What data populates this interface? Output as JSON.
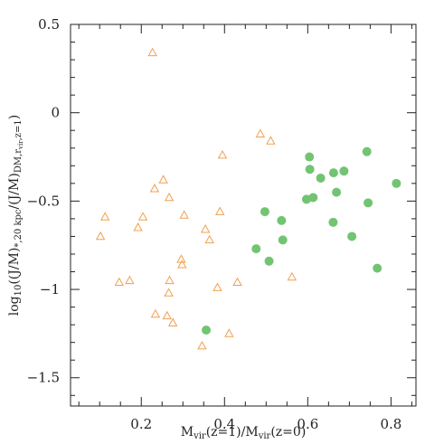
{
  "chart_data": {
    "type": "scatter",
    "xlabel": {
      "base": "M",
      "sub1": "vir",
      "mid": "(z=1)/M",
      "sub2": "vir",
      "end": "(z=0)"
    },
    "ylabel": {
      "p1": "log",
      "s1": "10",
      "p2": "((J/M)",
      "s2": "*,20 kpc",
      "p3": "/(J/M)",
      "s3": "DM,r",
      "s3b": "vir",
      "s3c": ",z=1",
      "p4": ")"
    },
    "xlim": [
      0.03,
      0.86
    ],
    "ylim": [
      -1.66,
      0.5
    ],
    "xticks": [
      {
        "v": 0.2,
        "label": "0.2"
      },
      {
        "v": 0.4,
        "label": "0.4"
      },
      {
        "v": 0.6,
        "label": "0.6"
      },
      {
        "v": 0.8,
        "label": "0.8"
      }
    ],
    "yticks": [
      {
        "v": 0.5,
        "label": "0.5"
      },
      {
        "v": 0,
        "label": "0"
      },
      {
        "v": -0.5,
        "label": "−0.5"
      },
      {
        "v": -1,
        "label": "−1"
      },
      {
        "v": -1.5,
        "label": "−1.5"
      }
    ],
    "x_minor_step": 0.05,
    "y_minor_step": 0.1,
    "series": [
      {
        "marker": "open-triangle",
        "color": "#f0a050",
        "points": [
          [
            0.227,
            0.34
          ],
          [
            0.102,
            -0.7
          ],
          [
            0.113,
            -0.59
          ],
          [
            0.147,
            -0.96
          ],
          [
            0.172,
            -0.95
          ],
          [
            0.192,
            -0.65
          ],
          [
            0.204,
            -0.59
          ],
          [
            0.232,
            -0.43
          ],
          [
            0.234,
            -1.14
          ],
          [
            0.253,
            -0.38
          ],
          [
            0.262,
            -1.15
          ],
          [
            0.266,
            -1.02
          ],
          [
            0.267,
            -0.48
          ],
          [
            0.268,
            -0.95
          ],
          [
            0.276,
            -1.19
          ],
          [
            0.296,
            -0.83
          ],
          [
            0.298,
            -0.86
          ],
          [
            0.303,
            -0.58
          ],
          [
            0.346,
            -1.32
          ],
          [
            0.354,
            -0.66
          ],
          [
            0.364,
            -0.72
          ],
          [
            0.383,
            -0.99
          ],
          [
            0.389,
            -0.56
          ],
          [
            0.395,
            -0.24
          ],
          [
            0.411,
            -1.25
          ],
          [
            0.431,
            -0.96
          ],
          [
            0.486,
            -0.12
          ],
          [
            0.511,
            -0.16
          ],
          [
            0.562,
            -0.93
          ]
        ]
      },
      {
        "marker": "filled-circle",
        "color": "#72c472",
        "points": [
          [
            0.356,
            -1.23
          ],
          [
            0.476,
            -0.77
          ],
          [
            0.497,
            -0.56
          ],
          [
            0.507,
            -0.84
          ],
          [
            0.537,
            -0.61
          ],
          [
            0.54,
            -0.72
          ],
          [
            0.597,
            -0.49
          ],
          [
            0.604,
            -0.25
          ],
          [
            0.605,
            -0.32
          ],
          [
            0.613,
            -0.48
          ],
          [
            0.631,
            -0.37
          ],
          [
            0.661,
            -0.62
          ],
          [
            0.662,
            -0.34
          ],
          [
            0.669,
            -0.45
          ],
          [
            0.687,
            -0.33
          ],
          [
            0.706,
            -0.7
          ],
          [
            0.742,
            -0.22
          ],
          [
            0.745,
            -0.51
          ],
          [
            0.767,
            -0.88
          ],
          [
            0.813,
            -0.4
          ]
        ]
      }
    ]
  }
}
